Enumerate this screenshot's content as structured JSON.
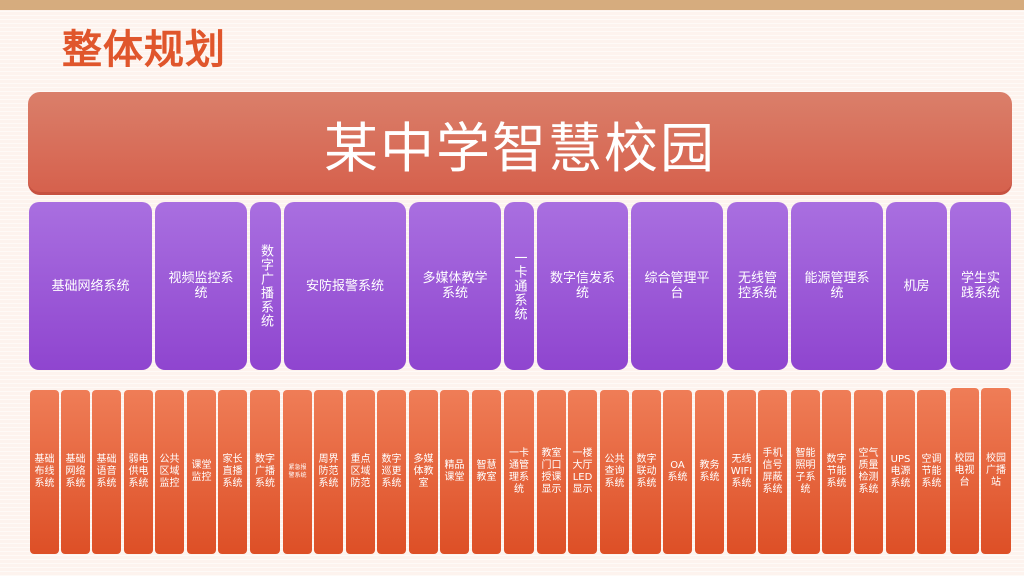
{
  "page": {
    "title": "整体规划"
  },
  "banner": {
    "text": "某中学智慧校园"
  },
  "systems": [
    {
      "label": "基础网络系统"
    },
    {
      "label": "视频监控系统"
    },
    {
      "label": "数字广播系统"
    },
    {
      "label": "安防报警系统"
    },
    {
      "label": "多媒体教学系统"
    },
    {
      "label": "一卡通系统"
    },
    {
      "label": "数字信发系统"
    },
    {
      "label": "综合管理平台"
    },
    {
      "label": "无线管控系统"
    },
    {
      "label": "能源管理系统"
    },
    {
      "label": "机房"
    },
    {
      "label": "学生实践系统"
    }
  ],
  "subsystems": [
    {
      "label": "基础\n布线\n系统"
    },
    {
      "label": "基础\n网络\n系统"
    },
    {
      "label": "基础\n语音\n系统"
    },
    {
      "label": "弱电\n供电\n系统"
    },
    {
      "label": "公共\n区域\n监控"
    },
    {
      "label": "课堂\n监控"
    },
    {
      "label": "家长\n直播\n系统"
    },
    {
      "label": "数字\n广播\n系统"
    },
    {
      "label": "紧急报\n警系统"
    },
    {
      "label": "周界\n防范\n系统"
    },
    {
      "label": "重点\n区域\n防范"
    },
    {
      "label": "数字\n巡更\n系统"
    },
    {
      "label": "多媒\n体教\n室"
    },
    {
      "label": "精品\n课堂"
    },
    {
      "label": "智慧\n教室"
    },
    {
      "label": "一卡\n通管\n理系\n统"
    },
    {
      "label": "教室\n门口\n授课\n显示"
    },
    {
      "label": "一楼\n大厅\nLED\n显示"
    },
    {
      "label": "公共\n查询\n系统"
    },
    {
      "label": "数字\n联动\n系统"
    },
    {
      "label": "OA\n系统"
    },
    {
      "label": "教务\n系统"
    },
    {
      "label": "无线\nWIFI\n系统"
    },
    {
      "label": "手机\n信号\n屏蔽\n系统"
    },
    {
      "label": "智能\n照明\n子系\n统"
    },
    {
      "label": "数字\n节能\n系统"
    },
    {
      "label": "空气\n质量\n检测\n系统"
    },
    {
      "label": "UPS\n电源\n系统"
    },
    {
      "label": "空调\n节能\n系统"
    },
    {
      "label": "校园\n电视\n台"
    },
    {
      "label": "校园\n广播\n站"
    }
  ]
}
